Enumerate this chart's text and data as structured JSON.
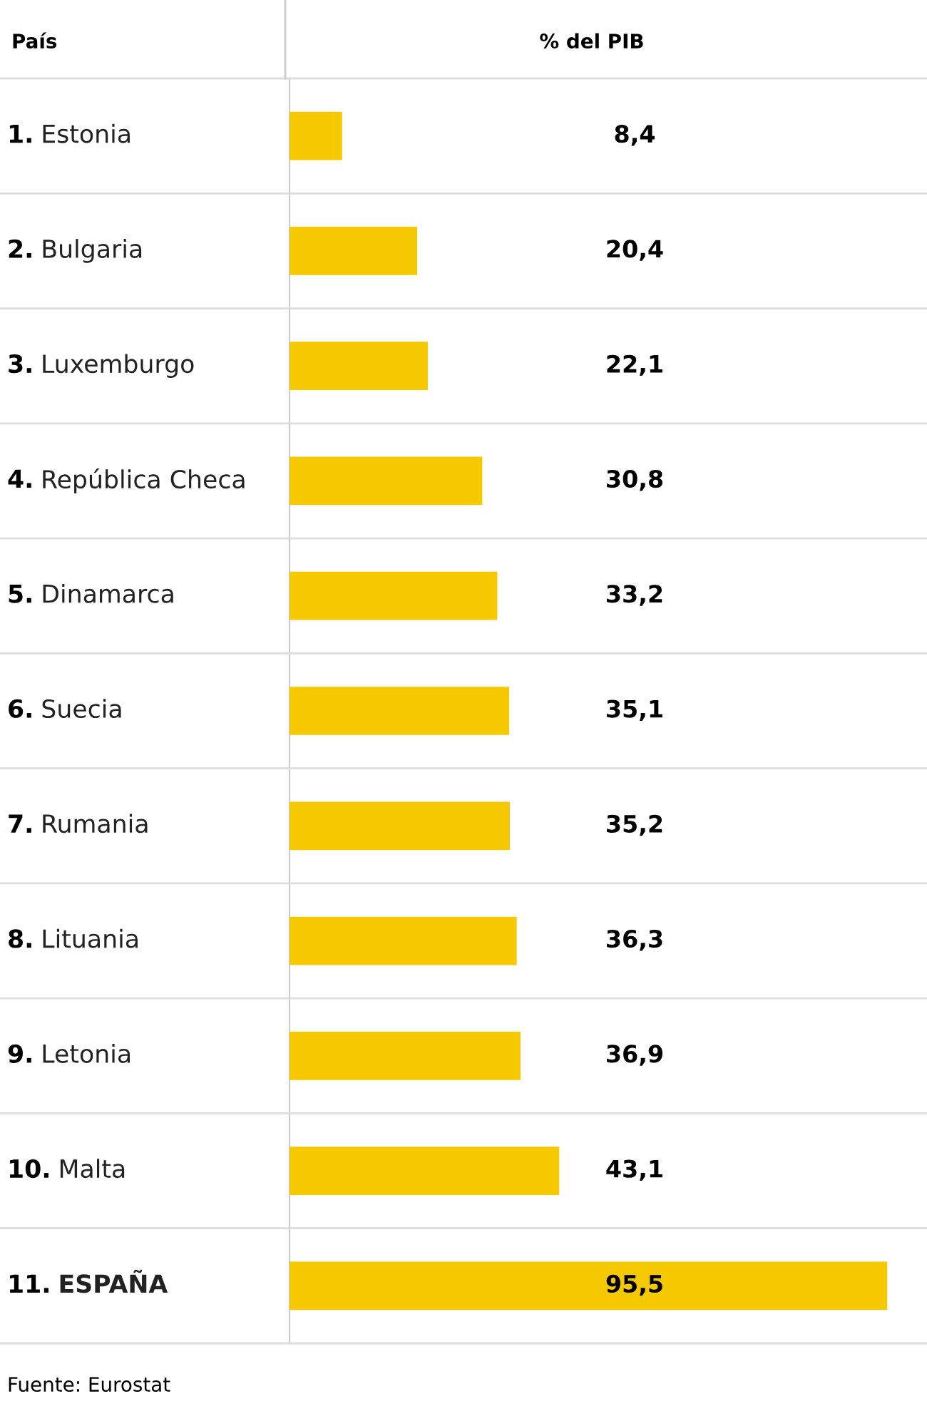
{
  "chart_data": {
    "type": "bar",
    "orientation": "horizontal",
    "ylabel": "País",
    "xlabel": "% del PIB",
    "categories": [
      "1. Estonia",
      "2. Bulgaria",
      "3. Luxemburgo",
      "4. República Checa",
      "5. Dinamarca",
      "6. Suecia",
      "7. Rumania",
      "8. Lituania",
      "9. Letonia",
      "10. Malta",
      "11. ESPAÑA"
    ],
    "values": [
      8.4,
      20.4,
      22.1,
      30.8,
      33.2,
      35.1,
      35.2,
      36.3,
      36.9,
      43.1,
      95.5
    ],
    "color": "#f5c800",
    "value_labels": [
      "8,4",
      "20,4",
      "22,1",
      "30,8",
      "33,2",
      "35,1",
      "35,2",
      "36,3",
      "36,9",
      "43,1",
      "95,5"
    ],
    "annotations": [
      "Fuente: Eurostat"
    ]
  }
}
